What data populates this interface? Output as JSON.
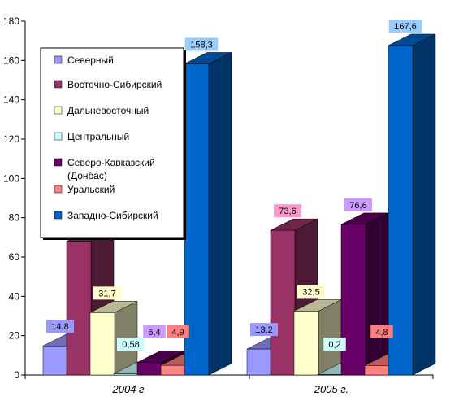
{
  "chart_data": {
    "type": "bar",
    "categories": [
      "2004 г",
      "2005 г."
    ],
    "ylim": [
      0,
      180
    ],
    "yticks": [
      0,
      20,
      40,
      60,
      80,
      100,
      120,
      140,
      160,
      180
    ],
    "grid": false,
    "legend_position": "top-left",
    "series": [
      {
        "name": "Северный",
        "values": [
          14.8,
          13.2
        ],
        "labels": [
          "14,8",
          "13,2"
        ],
        "color": "#9999ff",
        "label_bg": "#9999ff"
      },
      {
        "name": "Восточно-Сибирский",
        "values": [
          68,
          73.6
        ],
        "labels": [
          "",
          "73,6"
        ],
        "color": "#993366",
        "label_bg": "#ff99cc"
      },
      {
        "name": "Дальневосточный",
        "values": [
          31.7,
          32.5
        ],
        "labels": [
          "31,7",
          "32,5"
        ],
        "color": "#ffffcc",
        "label_bg": "#ffffcc"
      },
      {
        "name": "Центральный",
        "values": [
          0.58,
          0.2
        ],
        "labels": [
          "0,58",
          "0,2"
        ],
        "color": "#ccffff",
        "label_bg": "#ccffff"
      },
      {
        "name": "Северо-Кавказский\n(Донбас)",
        "values": [
          6.4,
          76.6
        ],
        "labels": [
          "6,4",
          "76,6"
        ],
        "color": "#660066",
        "label_bg": "#cc99ff"
      },
      {
        "name": "Уральский",
        "values": [
          4.9,
          4.8
        ],
        "labels": [
          "4,9",
          "4,8"
        ],
        "color": "#ff8080",
        "label_bg": "#ff8080"
      },
      {
        "name": "Западно-Сибирский",
        "values": [
          158.3,
          167.6
        ],
        "labels": [
          "158,3",
          "167,6"
        ],
        "color": "#0066cc",
        "label_bg": "#99ccff"
      }
    ]
  }
}
